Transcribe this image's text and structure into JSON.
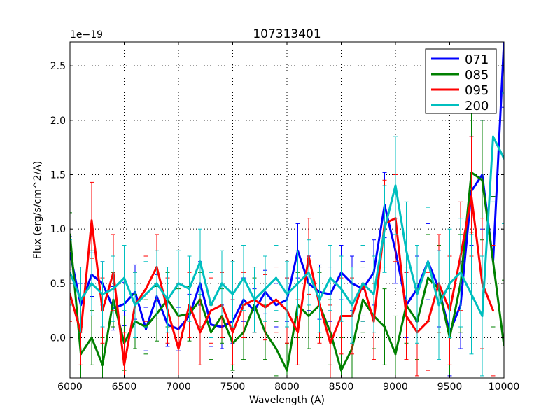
{
  "chart_data": {
    "type": "line",
    "title": "107313401",
    "xlabel": "Wavelength (A)",
    "ylabel": "Flux (erg/s/cm^2/A)",
    "y_multiplier": "1e−19",
    "xlim": [
      6000,
      10000
    ],
    "ylim": [
      -0.37,
      2.72
    ],
    "x_ticks": [
      6000,
      6500,
      7000,
      7500,
      8000,
      8500,
      9000,
      9500,
      10000
    ],
    "x_tick_labels": [
      "6000",
      "6500",
      "7000",
      "7500",
      "8000",
      "8500",
      "9000",
      "9500",
      "10000"
    ],
    "y_ticks": [
      0.0,
      0.5,
      1.0,
      1.5,
      2.0,
      2.5
    ],
    "y_tick_labels": [
      "0.0",
      "0.5",
      "1.0",
      "1.5",
      "2.0",
      "2.5"
    ],
    "grid": true,
    "legend_position": "top-right",
    "series": [
      {
        "name": "071",
        "color": "#0000ff",
        "x": [
          6000,
          6100,
          6200,
          6300,
          6400,
          6500,
          6600,
          6700,
          6800,
          6900,
          7000,
          7100,
          7200,
          7300,
          7400,
          7500,
          7600,
          7700,
          7800,
          7900,
          8000,
          8100,
          8200,
          8300,
          8400,
          8500,
          8600,
          8700,
          8800,
          8900,
          9000,
          9100,
          9200,
          9300,
          9400,
          9500,
          9600,
          9700,
          9800,
          9900,
          10000
        ],
        "y": [
          0.78,
          0.3,
          0.58,
          0.5,
          0.27,
          0.31,
          0.42,
          0.08,
          0.38,
          0.12,
          0.08,
          0.2,
          0.5,
          0.12,
          0.1,
          0.15,
          0.35,
          0.25,
          0.42,
          0.3,
          0.35,
          0.8,
          0.5,
          0.42,
          0.4,
          0.6,
          0.5,
          0.45,
          0.6,
          1.22,
          0.8,
          0.3,
          0.45,
          0.7,
          0.45,
          0.05,
          0.3,
          1.35,
          1.5,
          0.7,
          2.72
        ],
        "err": [
          0.15,
          0.2,
          0.2,
          0.2,
          0.2,
          0.2,
          0.25,
          0.2,
          0.2,
          0.2,
          0.2,
          0.2,
          0.2,
          0.2,
          0.2,
          0.2,
          0.2,
          0.2,
          0.2,
          0.2,
          0.2,
          0.25,
          0.25,
          0.25,
          0.25,
          0.25,
          0.25,
          0.25,
          0.3,
          0.3,
          0.3,
          0.3,
          0.3,
          0.35,
          0.35,
          0.4,
          0.4,
          0.5,
          0.5,
          0.6,
          0.6
        ]
      },
      {
        "name": "085",
        "color": "#008000",
        "x": [
          6000,
          6100,
          6200,
          6300,
          6400,
          6500,
          6600,
          6700,
          6800,
          6900,
          7000,
          7100,
          7200,
          7300,
          7400,
          7500,
          7600,
          7700,
          7800,
          7900,
          8000,
          8100,
          8200,
          8300,
          8400,
          8500,
          8600,
          8700,
          8800,
          8900,
          9000,
          9100,
          9200,
          9300,
          9400,
          9500,
          9600,
          9700,
          9800,
          9900,
          10000
        ],
        "y": [
          0.95,
          -0.15,
          0.0,
          -0.25,
          0.35,
          -0.05,
          0.15,
          0.1,
          0.22,
          0.35,
          0.2,
          0.22,
          0.35,
          0.05,
          0.2,
          -0.05,
          0.05,
          0.3,
          0.05,
          -0.1,
          -0.3,
          0.3,
          0.2,
          0.3,
          0.05,
          -0.3,
          -0.1,
          0.35,
          0.2,
          0.1,
          -0.15,
          0.3,
          0.15,
          0.55,
          0.45,
          0.0,
          0.5,
          1.52,
          1.45,
          0.7,
          -0.07
        ],
        "err": [
          0.2,
          0.25,
          0.25,
          0.25,
          0.25,
          0.25,
          0.25,
          0.25,
          0.25,
          0.25,
          0.25,
          0.25,
          0.25,
          0.25,
          0.25,
          0.25,
          0.25,
          0.25,
          0.25,
          0.25,
          0.25,
          0.3,
          0.3,
          0.3,
          0.3,
          0.3,
          0.3,
          0.3,
          0.3,
          0.35,
          0.35,
          0.35,
          0.35,
          0.4,
          0.4,
          0.45,
          0.45,
          0.55,
          0.55,
          0.6,
          0.6
        ]
      },
      {
        "name": "095",
        "color": "#ff0000",
        "x": [
          6000,
          6100,
          6200,
          6300,
          6400,
          6500,
          6600,
          6700,
          6800,
          6900,
          7000,
          7100,
          7200,
          7300,
          7400,
          7500,
          7600,
          7700,
          7800,
          7900,
          8000,
          8100,
          8200,
          8300,
          8400,
          8500,
          8600,
          8700,
          8800,
          8900,
          9000,
          9100,
          9200,
          9300,
          9400,
          9500,
          9600,
          9700,
          9800,
          9900
        ],
        "y": [
          0.4,
          0.05,
          1.08,
          0.25,
          0.6,
          -0.25,
          0.3,
          0.45,
          0.65,
          0.25,
          -0.1,
          0.3,
          0.05,
          0.25,
          0.3,
          0.05,
          0.3,
          0.35,
          0.28,
          0.35,
          0.25,
          0.05,
          0.75,
          0.3,
          -0.05,
          0.2,
          0.2,
          0.5,
          0.15,
          1.05,
          1.1,
          0.2,
          0.05,
          0.15,
          0.5,
          0.25,
          0.75,
          1.3,
          0.5,
          0.25
        ],
        "err": [
          0.25,
          0.3,
          0.35,
          0.3,
          0.35,
          0.3,
          0.3,
          0.3,
          0.3,
          0.3,
          0.3,
          0.3,
          0.3,
          0.3,
          0.3,
          0.3,
          0.3,
          0.3,
          0.3,
          0.3,
          0.3,
          0.3,
          0.35,
          0.35,
          0.35,
          0.35,
          0.35,
          0.35,
          0.35,
          0.4,
          0.4,
          0.4,
          0.4,
          0.45,
          0.45,
          0.5,
          0.5,
          0.55,
          0.6,
          0.6
        ]
      },
      {
        "name": "200",
        "color": "#00bfbf",
        "x": [
          6000,
          6100,
          6200,
          6300,
          6400,
          6500,
          6600,
          6700,
          6800,
          6900,
          7000,
          7100,
          7200,
          7300,
          7400,
          7500,
          7600,
          7700,
          7800,
          7900,
          8000,
          8100,
          8200,
          8300,
          8400,
          8500,
          8600,
          8700,
          8800,
          8900,
          9000,
          9100,
          9200,
          9300,
          9400,
          9500,
          9600,
          9700,
          9800,
          9900,
          10000
        ],
        "y": [
          0.6,
          0.35,
          0.5,
          0.4,
          0.45,
          0.55,
          0.3,
          0.4,
          0.5,
          0.35,
          0.5,
          0.45,
          0.7,
          0.3,
          0.5,
          0.4,
          0.55,
          0.35,
          0.45,
          0.55,
          0.4,
          0.5,
          0.6,
          0.35,
          0.55,
          0.45,
          0.3,
          0.5,
          0.4,
          1.0,
          1.4,
          0.8,
          0.4,
          0.7,
          0.3,
          0.5,
          0.6,
          0.4,
          0.2,
          1.85,
          1.65
        ],
        "err": [
          0.3,
          0.3,
          0.3,
          0.3,
          0.3,
          0.3,
          0.3,
          0.3,
          0.3,
          0.3,
          0.3,
          0.3,
          0.3,
          0.3,
          0.3,
          0.3,
          0.3,
          0.3,
          0.3,
          0.3,
          0.3,
          0.3,
          0.3,
          0.3,
          0.3,
          0.3,
          0.35,
          0.35,
          0.35,
          0.4,
          0.45,
          0.45,
          0.45,
          0.5,
          0.5,
          0.5,
          0.5,
          0.55,
          0.55,
          0.6,
          0.6
        ]
      }
    ]
  }
}
